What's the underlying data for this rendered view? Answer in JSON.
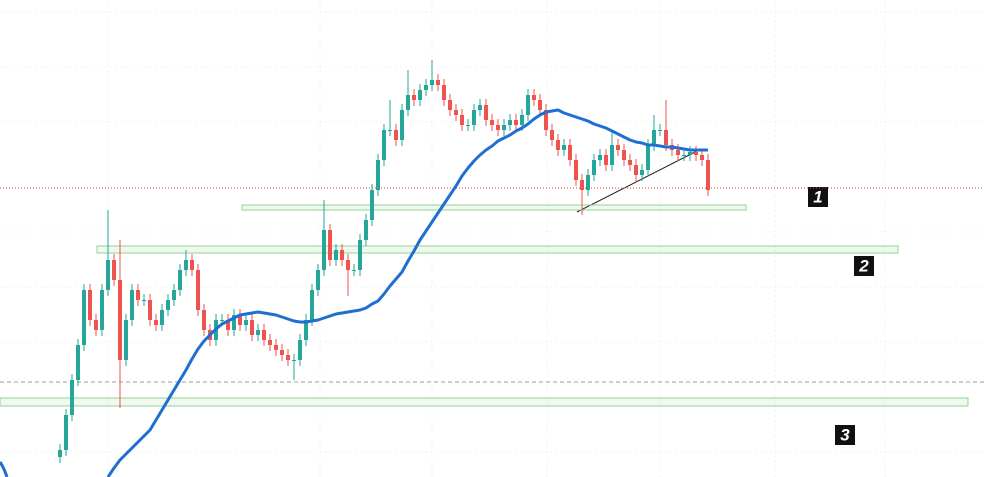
{
  "chart_data": {
    "type": "candlestick",
    "ylim": [
      0,
      477
    ],
    "up_color": "#26a69a",
    "down_color": "#ef5350",
    "open": [
      20,
      27,
      62,
      97,
      132,
      187,
      157,
      147,
      187,
      217,
      197,
      117,
      157,
      187,
      177,
      177,
      157,
      152,
      167,
      177,
      187,
      207,
      217,
      207,
      167,
      147,
      137,
      157,
      157,
      147,
      162,
      152,
      157,
      142,
      147,
      137,
      132,
      127,
      122,
      117,
      117,
      137,
      157,
      187,
      207,
      247,
      217,
      227,
      217,
      207,
      207,
      237,
      257,
      287,
      317,
      347,
      347,
      337,
      367,
      382,
      377,
      387,
      392,
      397,
      392,
      377,
      367,
      362,
      352,
      352,
      367,
      372,
      357,
      352,
      347,
      352,
      357,
      352,
      362,
      382,
      377,
      367,
      347,
      337,
      327,
      332,
      317,
      297,
      287,
      302,
      317,
      322,
      312,
      332,
      327,
      317,
      312,
      302,
      307,
      332,
      347,
      347,
      332,
      327,
      322,
      322,
      325,
      322,
      317
    ],
    "high": [
      33,
      68,
      103,
      138,
      193,
      193,
      163,
      193,
      267,
      223,
      237,
      163,
      193,
      193,
      183,
      183,
      163,
      173,
      183,
      193,
      213,
      227,
      223,
      213,
      173,
      153,
      163,
      163,
      163,
      168,
      168,
      163,
      163,
      153,
      153,
      143,
      138,
      133,
      128,
      123,
      143,
      163,
      193,
      213,
      277,
      253,
      233,
      233,
      223,
      213,
      243,
      263,
      293,
      323,
      353,
      377,
      353,
      373,
      407,
      388,
      393,
      398,
      417,
      403,
      398,
      383,
      373,
      368,
      358,
      373,
      378,
      378,
      363,
      358,
      358,
      363,
      363,
      368,
      388,
      388,
      383,
      373,
      353,
      343,
      338,
      338,
      323,
      303,
      308,
      323,
      328,
      328,
      347,
      338,
      333,
      323,
      318,
      313,
      338,
      362,
      353,
      377,
      338,
      333,
      328,
      331,
      331,
      328,
      323
    ],
    "low": [
      14,
      21,
      56,
      91,
      126,
      151,
      141,
      141,
      181,
      191,
      69,
      111,
      151,
      171,
      171,
      151,
      146,
      146,
      161,
      171,
      181,
      201,
      201,
      161,
      141,
      131,
      131,
      151,
      141,
      141,
      146,
      146,
      136,
      136,
      131,
      126,
      121,
      116,
      111,
      97,
      111,
      131,
      151,
      181,
      201,
      211,
      211,
      211,
      181,
      201,
      201,
      231,
      251,
      281,
      311,
      341,
      331,
      331,
      361,
      371,
      371,
      381,
      386,
      386,
      371,
      361,
      356,
      346,
      346,
      346,
      361,
      351,
      346,
      341,
      341,
      346,
      346,
      346,
      356,
      371,
      361,
      341,
      331,
      321,
      321,
      311,
      291,
      262,
      281,
      296,
      311,
      306,
      306,
      321,
      311,
      306,
      296,
      296,
      301,
      326,
      341,
      326,
      321,
      316,
      316,
      316,
      316,
      311,
      281
    ],
    "close": [
      27,
      62,
      97,
      132,
      187,
      157,
      147,
      187,
      217,
      197,
      117,
      157,
      187,
      177,
      177,
      157,
      152,
      167,
      177,
      187,
      207,
      217,
      207,
      167,
      147,
      137,
      157,
      157,
      147,
      162,
      152,
      157,
      142,
      147,
      137,
      132,
      127,
      122,
      117,
      117,
      137,
      157,
      187,
      207,
      247,
      217,
      227,
      217,
      207,
      207,
      237,
      257,
      287,
      317,
      347,
      347,
      337,
      367,
      382,
      377,
      387,
      392,
      397,
      392,
      377,
      367,
      362,
      352,
      352,
      367,
      372,
      357,
      352,
      347,
      352,
      357,
      352,
      362,
      382,
      377,
      367,
      347,
      337,
      327,
      332,
      317,
      297,
      287,
      302,
      317,
      322,
      312,
      332,
      327,
      317,
      312,
      302,
      307,
      332,
      347,
      347,
      332,
      327,
      322,
      322,
      325,
      322,
      317,
      287
    ],
    "ma": {
      "color": "#1f6fd1",
      "values": [
        null,
        null,
        null,
        null,
        null,
        null,
        null,
        null,
        0,
        9,
        17,
        23,
        29,
        35,
        41,
        47,
        57,
        67,
        77,
        87,
        97,
        107,
        118,
        128,
        136,
        142,
        148,
        153,
        156,
        159,
        162,
        163,
        164,
        165,
        164,
        163,
        162,
        160,
        158,
        156,
        155,
        155,
        156,
        157,
        159,
        161,
        163,
        164,
        165,
        166,
        167,
        169,
        173,
        176,
        183,
        191,
        198,
        205,
        216,
        226,
        237,
        246,
        255,
        264,
        273,
        282,
        291,
        301,
        309,
        316,
        322,
        327,
        331,
        336,
        339,
        342,
        346,
        349,
        353,
        358,
        362,
        365,
        366,
        367,
        364,
        362,
        360,
        358,
        356,
        353,
        351,
        349,
        346,
        343,
        340,
        337,
        335,
        334,
        332,
        332,
        331,
        330,
        330,
        329,
        328,
        327,
        327,
        327,
        327
      ]
    },
    "hlines": [
      {
        "value": 289,
        "color": "#e53935",
        "style": "dotted"
      },
      {
        "value": 95,
        "color": "#9e9e9e",
        "style": "dashed"
      }
    ],
    "zones": [
      {
        "label": "1",
        "top": 272,
        "bottom": 267
      },
      {
        "label": "2",
        "top": 231,
        "bottom": 224
      },
      {
        "label": "3",
        "top": 79,
        "bottom": 71
      }
    ]
  }
}
